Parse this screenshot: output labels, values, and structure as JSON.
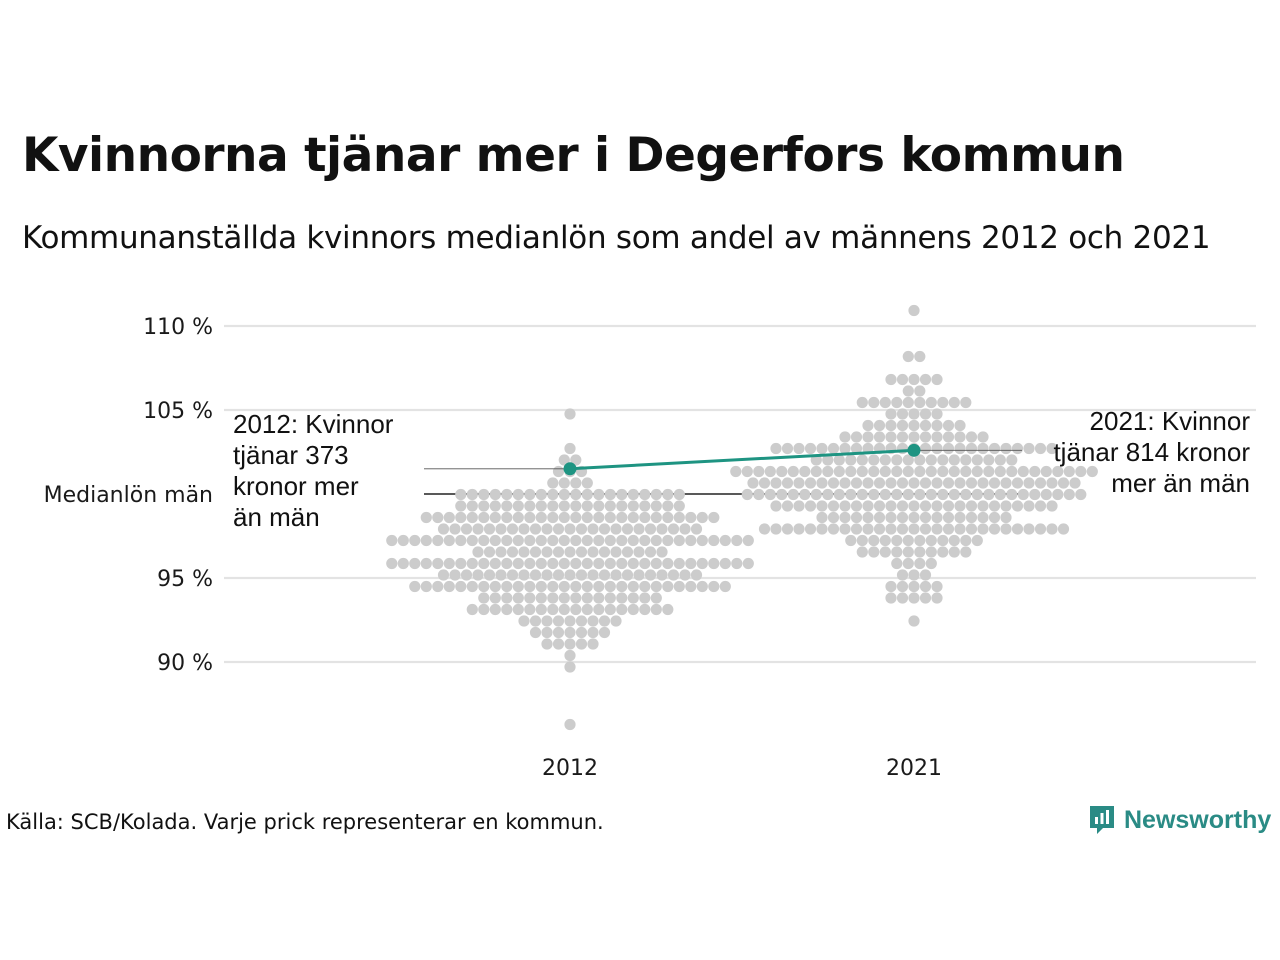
{
  "title": "Kvinnorna tjänar mer i Degerfors kommun",
  "subtitle": "Kommunanställda kvinnors medianlön som andel av männens 2012 och 2021",
  "source": "Källa: SCB/Kolada. Varje prick representerar en kommun.",
  "brand": "Newsworthy",
  "colors": {
    "highlight": "#1e9482",
    "dots": "#cccccc",
    "grid": "#e3e3e3",
    "reference": "#222222",
    "brand": "#2a8b85"
  },
  "chart_data": {
    "type": "scatter",
    "subtype": "beeswarm",
    "categories": [
      "2012",
      "2021"
    ],
    "y_ticks": [
      90,
      95,
      105,
      110
    ],
    "y_tick_labels": [
      "90 %",
      "95 %",
      "105 %",
      "110 %"
    ],
    "reference": {
      "value": 100,
      "label": "Medianlön män"
    },
    "ylim": [
      86,
      111.5
    ],
    "grid": true,
    "highlight": {
      "values": [
        101.5,
        102.6
      ],
      "annotations": [
        {
          "lines": [
            "2012: Kvinnor",
            "tjänar 373",
            "kronor mer",
            "än män"
          ]
        },
        {
          "lines": [
            "2021: Kvinnor",
            "tjänar 814 kronor",
            "mer än män"
          ]
        }
      ]
    },
    "distributions": [
      {
        "category": "2012",
        "min": 86.5,
        "max": 105.1,
        "center": 96.3,
        "spread": 2.6,
        "count": 290
      },
      {
        "category": "2021",
        "min": 92.5,
        "max": 111.2,
        "center": 100.6,
        "spread": 2.8,
        "count": 290
      }
    ]
  }
}
